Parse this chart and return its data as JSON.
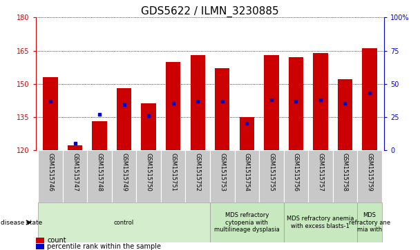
{
  "title": "GDS5622 / ILMN_3230885",
  "samples": [
    "GSM1515746",
    "GSM1515747",
    "GSM1515748",
    "GSM1515749",
    "GSM1515750",
    "GSM1515751",
    "GSM1515752",
    "GSM1515753",
    "GSM1515754",
    "GSM1515755",
    "GSM1515756",
    "GSM1515757",
    "GSM1515758",
    "GSM1515759"
  ],
  "count_values": [
    153,
    122,
    133,
    148,
    141,
    160,
    163,
    157,
    135,
    163,
    162,
    164,
    152,
    166
  ],
  "percentile_values": [
    37,
    5,
    27,
    34,
    26,
    35,
    37,
    37,
    20,
    38,
    37,
    38,
    35,
    43
  ],
  "y_min": 120,
  "y_max": 180,
  "y_ticks_left": [
    120,
    135,
    150,
    165,
    180
  ],
  "y_ticks_right": [
    0,
    25,
    50,
    75,
    100
  ],
  "bar_color": "#cc0000",
  "percentile_color": "#0000cc",
  "bg_color": "#ffffff",
  "plot_bg_color": "#ffffff",
  "sample_bg_color": "#c8c8c8",
  "disease_groups": [
    {
      "label": "control",
      "start": 0,
      "end": 7,
      "color": "#d4edcc"
    },
    {
      "label": "MDS refractory\ncytopenia with\nmultilineage dysplasia",
      "start": 7,
      "end": 10,
      "color": "#c8e8c0"
    },
    {
      "label": "MDS refractory anemia\nwith excess blasts-1",
      "start": 10,
      "end": 13,
      "color": "#c8e8c0"
    },
    {
      "label": "MDS\nrefractory ane\nmia with",
      "start": 13,
      "end": 14,
      "color": "#c8e8c0"
    }
  ],
  "left_axis_color": "#cc0000",
  "right_axis_color": "#0000cc",
  "title_fontsize": 11,
  "tick_fontsize": 7,
  "sample_fontsize": 6,
  "disease_fontsize": 6,
  "legend_fontsize": 7
}
